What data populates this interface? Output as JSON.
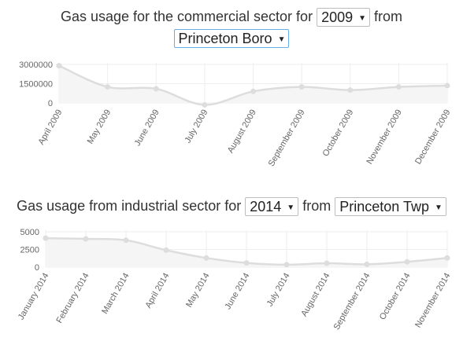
{
  "chart1": {
    "header_prefix": "Gas usage for the commercial sector for",
    "year": "2009",
    "header_mid": "from",
    "town": "Princeton Boro"
  },
  "chart2": {
    "header_prefix": "Gas usage from industrial sector for",
    "year": "2014",
    "header_mid": "from",
    "town": "Princeton Twp"
  },
  "colors": {
    "line": "#dddddd",
    "fill": "#f5f5f5",
    "grid": "#eeeeee",
    "focus_border": "#66afe9"
  },
  "chart_data": [
    {
      "type": "area",
      "title": "Gas usage for the commercial sector for 2009 from Princeton Boro",
      "categories": [
        "April 2009",
        "May 2009",
        "June 2009",
        "July 2009",
        "August 2009",
        "September 2009",
        "October 2009",
        "November 2009",
        "December 2009"
      ],
      "values": [
        2900000,
        1250000,
        1100000,
        -150000,
        900000,
        1250000,
        1000000,
        1250000,
        1350000
      ],
      "yticks": [
        "3000000",
        "1500000",
        "0"
      ],
      "ylim": [
        0,
        3000000
      ],
      "grid": true
    },
    {
      "type": "area",
      "title": "Gas usage from industrial sector for 2014 from Princeton Twp",
      "categories": [
        "January 2014",
        "February 2014",
        "March 2014",
        "April 2014",
        "May 2014",
        "June 2014",
        "July 2014",
        "August 2014",
        "September 2014",
        "October 2014",
        "November 2014"
      ],
      "values": [
        4100,
        4000,
        3800,
        2400,
        1300,
        600,
        350,
        550,
        400,
        750,
        1300
      ],
      "yticks": [
        "5000",
        "2500",
        "0"
      ],
      "ylim": [
        0,
        5000
      ],
      "grid": true
    }
  ]
}
